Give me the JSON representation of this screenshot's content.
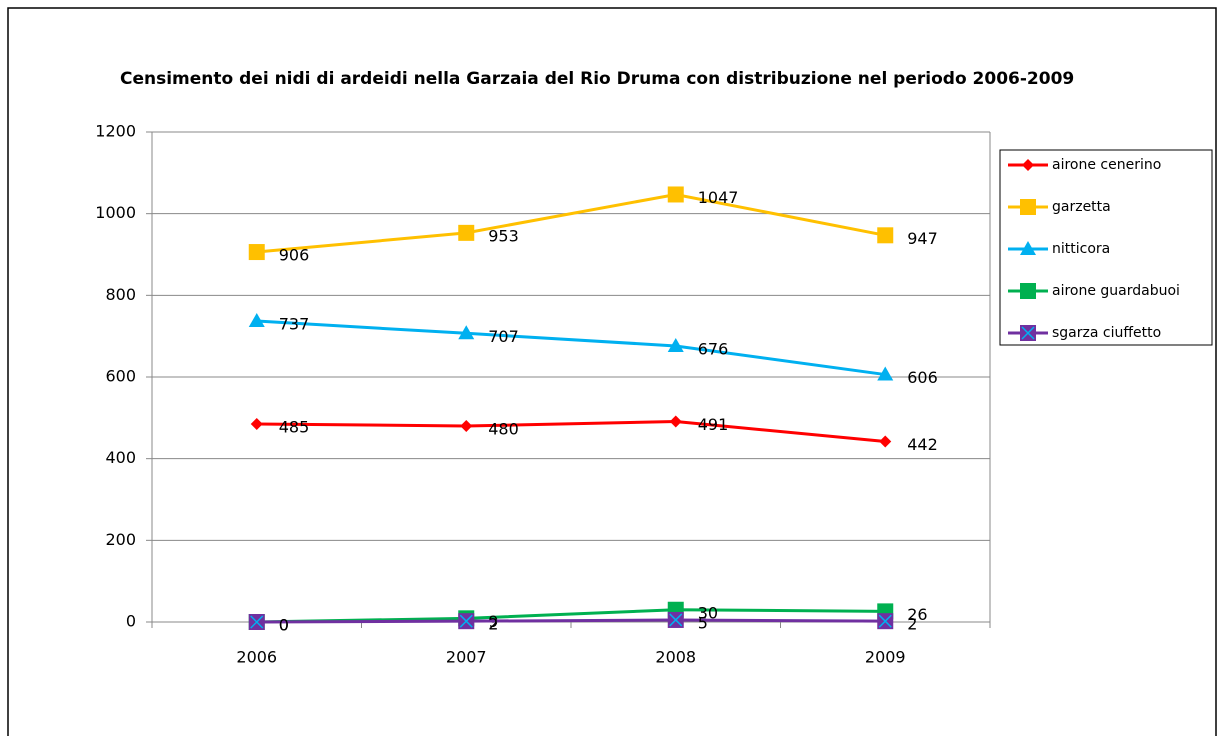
{
  "chart_data": {
    "type": "line",
    "title": "Censimento dei nidi di ardeidi  nella Garzaia del Rio Druma con distribuzione nel periodo 2006-2009",
    "categories": [
      "2006",
      "2007",
      "2008",
      "2009"
    ],
    "series": [
      {
        "name": "airone cenerino",
        "color": "#ff0000",
        "marker": "diamond",
        "values": [
          485,
          480,
          491,
          442
        ]
      },
      {
        "name": "garzetta",
        "color": "#ffc000",
        "marker": "square",
        "values": [
          906,
          953,
          1047,
          947
        ]
      },
      {
        "name": "nitticora",
        "color": "#00b0f0",
        "marker": "triangle",
        "values": [
          737,
          707,
          676,
          606
        ]
      },
      {
        "name": "airone guardabuoi",
        "color": "#00b050",
        "marker": "square",
        "values": [
          0,
          9,
          30,
          26
        ]
      },
      {
        "name": "sgarza ciuffetto",
        "color": "#7030a0",
        "marker": "square-x",
        "values": [
          0,
          2,
          5,
          2
        ]
      }
    ],
    "ylim": [
      0,
      1200
    ],
    "yticks": [
      0,
      200,
      400,
      600,
      800,
      1000,
      1200
    ],
    "grid": true,
    "legend": "right"
  }
}
